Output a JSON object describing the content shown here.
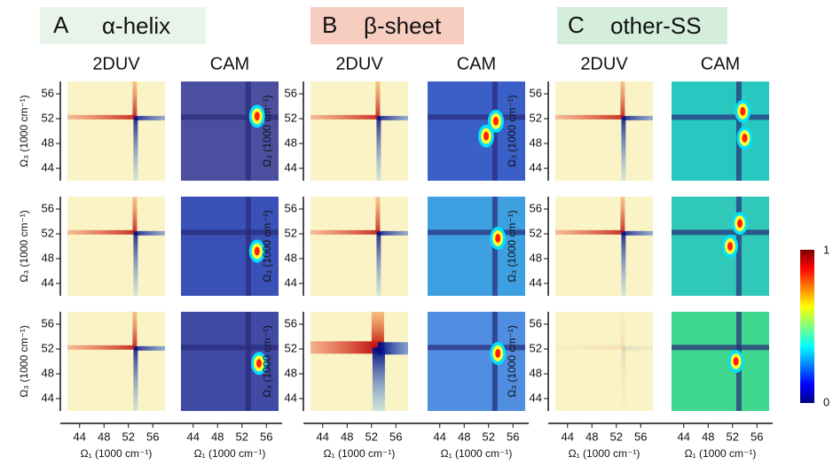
{
  "headers": [
    {
      "letter": "A",
      "title": "α-helix"
    },
    {
      "letter": "B",
      "title": "β-sheet"
    },
    {
      "letter": "C",
      "title": "other-SS"
    }
  ],
  "column_labels": [
    "2DUV",
    "CAM"
  ],
  "x_axis": {
    "ticks": [
      44,
      48,
      52,
      56
    ],
    "label": "Ω₁ (1000 cm⁻¹)"
  },
  "y_axis": {
    "ticks": [
      56,
      52,
      48,
      44
    ],
    "label": "Ω₃ (1000 cm⁻¹)"
  },
  "colorbar": {
    "max": 1,
    "min": 0
  }
}
